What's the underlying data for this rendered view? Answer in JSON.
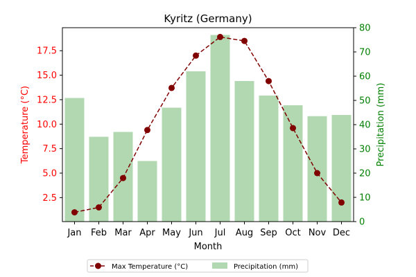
{
  "chart_data": {
    "type": "bar+line",
    "title": "Kyritz (Germany)",
    "xlabel": "Month",
    "categories": [
      "Jan",
      "Feb",
      "Mar",
      "Apr",
      "May",
      "Jun",
      "Jul",
      "Aug",
      "Sep",
      "Oct",
      "Nov",
      "Dec"
    ],
    "left_axis": {
      "label": "Temperature (°C)",
      "color": "#ff0000",
      "ticks": [
        "2.5",
        "5.0",
        "7.5",
        "10.0",
        "12.5",
        "15.0",
        "17.5"
      ],
      "ylim": [
        0.05,
        19.85
      ]
    },
    "right_axis": {
      "label": "Precipitation (mm)",
      "color": "#008000",
      "ticks": [
        "0",
        "10",
        "20",
        "30",
        "40",
        "50",
        "60",
        "70",
        "80"
      ],
      "ylim": [
        0,
        80
      ]
    },
    "series": [
      {
        "name": "Max Temperature (°C)",
        "type": "line",
        "axis": "left",
        "color": "#800000",
        "line_style": "dashed",
        "marker": "circle",
        "values": [
          1.0,
          1.5,
          4.5,
          9.4,
          13.7,
          17.0,
          18.9,
          18.5,
          14.4,
          9.6,
          5.0,
          2.0
        ]
      },
      {
        "name": "Precipitation (mm)",
        "type": "bar",
        "axis": "right",
        "color": "#b1d8b1",
        "values": [
          51,
          35,
          37,
          25,
          47,
          62,
          77,
          58,
          52,
          48,
          43.5,
          44
        ]
      }
    ],
    "legend": {
      "position": "bottom-center",
      "entries": [
        "Max Temperature (°C)",
        "Precipitation (mm)"
      ]
    },
    "grid": false
  }
}
